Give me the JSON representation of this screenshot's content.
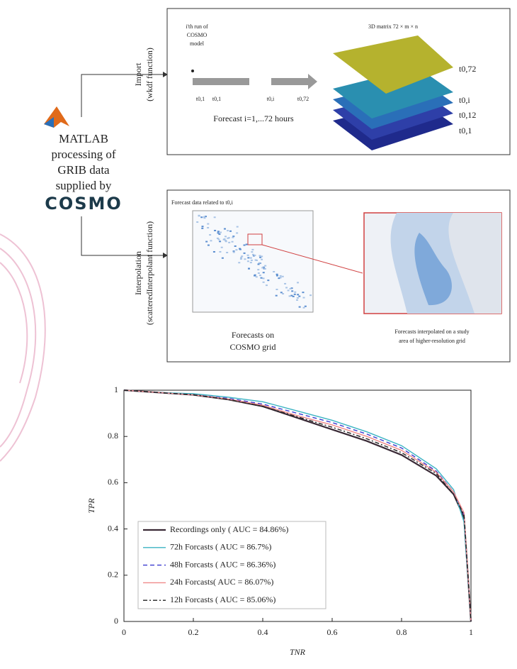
{
  "diagram": {
    "left_label_lines": [
      "MATLAB",
      "processing of",
      "GRIB data",
      "supplied by"
    ],
    "logo": "COSMO",
    "import": {
      "label_lines": [
        "Import",
        "(wkdf function)"
      ],
      "run_lines": [
        "i'th run of",
        "COSMO",
        "model"
      ],
      "times": [
        "t0,1",
        "t0,1",
        "t0,i",
        "t0,72"
      ],
      "forecast": "Forecast i=1,...72 hours",
      "matrix_title": "3D matrix 72 × m × n",
      "layers": [
        "t0,72",
        "t0,i",
        "t0,12",
        "t0,1"
      ]
    },
    "interp": {
      "label_lines": [
        "Interpolation",
        "(scatteredInterpolant function)"
      ],
      "map_title": "Forecast data related to t0,i",
      "left_caption": [
        "Forecasts on",
        "COSMO grid"
      ],
      "right_caption": [
        "Forecasts interpolated on a study",
        "area of higher-resolution grid"
      ]
    }
  },
  "chart_data": {
    "type": "line",
    "xlabel": "TNR",
    "ylabel": "TPR",
    "x": [
      0,
      0.1,
      0.2,
      0.3,
      0.4,
      0.5,
      0.6,
      0.7,
      0.8,
      0.9,
      0.95,
      0.98,
      1
    ],
    "series": [
      {
        "name": "Recordings only ( AUC = 84.86%)",
        "color": "#3a2a36",
        "dash": "solid",
        "values": [
          1,
          0.99,
          0.98,
          0.96,
          0.93,
          0.88,
          0.83,
          0.78,
          0.72,
          0.63,
          0.55,
          0.45,
          0
        ]
      },
      {
        "name": "72h Forcasts ( AUC = 86.7%)",
        "color": "#3bb3c3",
        "dash": "solid",
        "values": [
          1,
          0.99,
          0.985,
          0.97,
          0.95,
          0.91,
          0.87,
          0.82,
          0.76,
          0.66,
          0.57,
          0.43,
          0
        ]
      },
      {
        "name": "48h Forcasts ( AUC = 86.36%)",
        "color": "#3a3ad0",
        "dash": "dashed",
        "values": [
          1,
          0.99,
          0.98,
          0.965,
          0.94,
          0.9,
          0.86,
          0.81,
          0.75,
          0.65,
          0.56,
          0.46,
          0
        ]
      },
      {
        "name": "24h Forcasts( AUC = 86.07%)",
        "color": "#f08a8a",
        "dash": "solid",
        "values": [
          1,
          0.99,
          0.98,
          0.962,
          0.935,
          0.89,
          0.85,
          0.8,
          0.74,
          0.645,
          0.56,
          0.47,
          0
        ]
      },
      {
        "name": "12h Forcasts ( AUC = 85.06%)",
        "color": "#222222",
        "dash": "dashdot",
        "values": [
          1,
          0.99,
          0.98,
          0.96,
          0.93,
          0.885,
          0.84,
          0.79,
          0.73,
          0.64,
          0.55,
          0.46,
          0
        ]
      }
    ],
    "xlim": [
      0,
      1
    ],
    "ylim": [
      0,
      1
    ],
    "xticks": [
      0,
      0.2,
      0.4,
      0.6,
      0.8,
      1
    ],
    "yticks": [
      0,
      0.2,
      0.4,
      0.6,
      0.8,
      1
    ],
    "legend": "lower left"
  }
}
